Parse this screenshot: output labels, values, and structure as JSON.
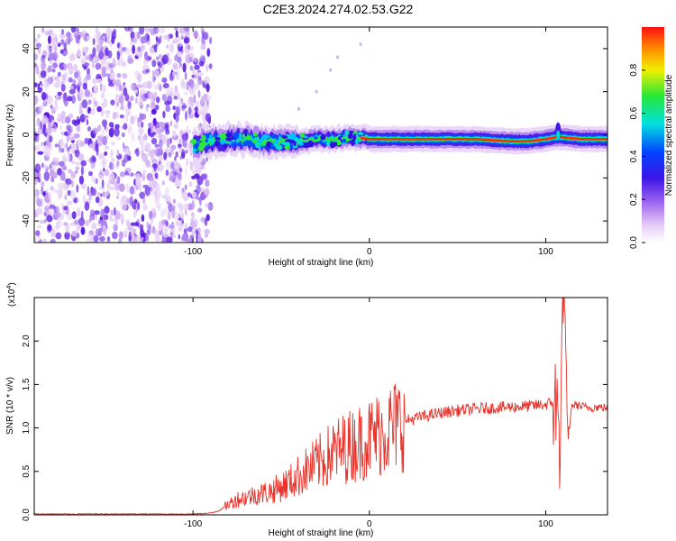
{
  "title": "C2E3.2024.274.02.53.G22",
  "chart_data": [
    {
      "type": "heatmap",
      "xlabel": "Height of straight line (km)",
      "ylabel": "Frequency (Hz)",
      "xlim": [
        -190,
        135
      ],
      "ylim": [
        -50,
        50
      ],
      "xticks": [
        -100,
        0,
        100
      ],
      "xtick_labels": [
        "-100",
        "0",
        "100"
      ],
      "yticks": [
        -40,
        -20,
        0,
        20,
        40
      ],
      "ytick_labels": [
        "-40",
        "-20",
        "0",
        "20",
        "40"
      ],
      "colorbar": {
        "label": "Normalized spectral amplitude",
        "range": [
          0,
          1
        ],
        "ticks": [
          0.0,
          0.2,
          0.4,
          0.6,
          0.8
        ],
        "tick_labels": [
          "0.0",
          "0.2",
          "0.4",
          "0.6",
          "0.8"
        ]
      },
      "ridge": [
        {
          "x": -100,
          "y": -6
        },
        {
          "x": -95,
          "y": -4
        },
        {
          "x": -90,
          "y": -3
        },
        {
          "x": -80,
          "y": -2
        },
        {
          "x": -70,
          "y": -2
        },
        {
          "x": -60,
          "y": -3
        },
        {
          "x": -50,
          "y": -3
        },
        {
          "x": -40,
          "y": -3
        },
        {
          "x": -30,
          "y": -2
        },
        {
          "x": -20,
          "y": -2
        },
        {
          "x": -10,
          "y": -1
        },
        {
          "x": 0,
          "y": -2
        },
        {
          "x": 10,
          "y": -2
        },
        {
          "x": 20,
          "y": -2
        },
        {
          "x": 40,
          "y": -2
        },
        {
          "x": 60,
          "y": -2
        },
        {
          "x": 80,
          "y": -3
        },
        {
          "x": 90,
          "y": -3
        },
        {
          "x": 100,
          "y": -2
        },
        {
          "x": 107,
          "y": -1
        },
        {
          "x": 120,
          "y": -2
        },
        {
          "x": 135,
          "y": -2
        }
      ],
      "grid": false
    },
    {
      "type": "line",
      "xlabel": "Height of straight line (km)",
      "ylabel": "SNR (10 * v/v)",
      "multiplier_label": "(x10",
      "multiplier_exp": "4",
      "multiplier_close": ")",
      "xlim": [
        -190,
        135
      ],
      "ylim": [
        0,
        25000
      ],
      "xticks": [
        -100,
        0,
        100
      ],
      "xtick_labels": [
        "-100",
        "0",
        "100"
      ],
      "yticks": [
        0,
        5000,
        10000,
        15000,
        20000
      ],
      "ytick_labels": [
        "0.0",
        "0.5",
        "1.0",
        "1.5",
        "2.0"
      ],
      "series": [
        {
          "color": "#e8322a",
          "x": [
            -190,
            -170,
            -150,
            -130,
            -110,
            -100,
            -90,
            -85,
            -80,
            -75,
            -70,
            -65,
            -60,
            -55,
            -50,
            -45,
            -40,
            -35,
            -30,
            -25,
            -20,
            -15,
            -10,
            -5,
            0,
            5,
            10,
            15,
            20,
            30,
            40,
            50,
            60,
            70,
            80,
            90,
            100,
            105,
            108,
            110,
            112,
            115,
            120,
            125,
            130,
            135
          ],
          "y": [
            100,
            100,
            100,
            100,
            100,
            100,
            200,
            500,
            1200,
            1800,
            2000,
            2300,
            2500,
            2800,
            3200,
            3800,
            4500,
            5200,
            5800,
            6500,
            7200,
            7600,
            8000,
            8400,
            8800,
            9300,
            9800,
            10300,
            10800,
            11300,
            11700,
            12000,
            12200,
            12300,
            12400,
            12500,
            12700,
            13000,
            9000,
            25000,
            8000,
            12700,
            12500,
            12300,
            12400,
            12300
          ]
        }
      ],
      "grid": false
    }
  ]
}
